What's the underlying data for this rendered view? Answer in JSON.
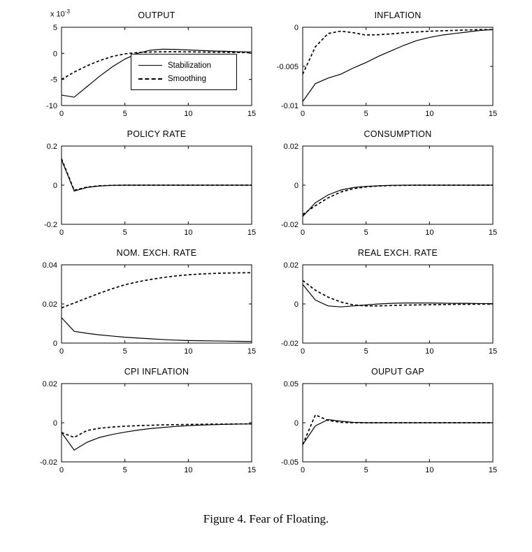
{
  "caption": "Figure 4. Fear of Floating.",
  "colors": {
    "line": "#000000",
    "background": "#ffffff"
  },
  "legend": {
    "entries": [
      {
        "label": "Stabilization",
        "style": "solid"
      },
      {
        "label": "Smoothing",
        "style": "dashed"
      }
    ]
  },
  "x": [
    0,
    1,
    2,
    3,
    4,
    5,
    6,
    7,
    8,
    9,
    10,
    11,
    12,
    13,
    14,
    15
  ],
  "chart_data": [
    {
      "type": "line",
      "title": "OUTPUT",
      "y_scale_prefix": "x 10",
      "y_scale_exp": "-3",
      "xlim": [
        0,
        15
      ],
      "ylim": [
        -10,
        5
      ],
      "xticks": [
        0,
        5,
        10,
        15
      ],
      "xtick_labels": [
        "0",
        "5",
        "10",
        "15"
      ],
      "yticks": [
        -10,
        -5,
        0,
        5
      ],
      "ytick_labels": [
        "-10",
        "-5",
        "0",
        "5"
      ],
      "legend_visible": true,
      "series": [
        {
          "name": "Stabilization",
          "style": "solid",
          "values": [
            -8.0,
            -8.4,
            -6.4,
            -4.4,
            -2.6,
            -1.1,
            0.0,
            0.6,
            0.8,
            0.75,
            0.65,
            0.55,
            0.45,
            0.4,
            0.3,
            0.25
          ]
        },
        {
          "name": "Smoothing",
          "style": "dashed",
          "values": [
            -5.0,
            -3.6,
            -2.4,
            -1.4,
            -0.6,
            -0.1,
            0.15,
            0.25,
            0.3,
            0.3,
            0.28,
            0.25,
            0.22,
            0.2,
            0.15,
            0.12
          ]
        }
      ]
    },
    {
      "type": "line",
      "title": "INFLATION",
      "xlim": [
        0,
        15
      ],
      "ylim": [
        -0.01,
        0
      ],
      "xticks": [
        0,
        5,
        10,
        15
      ],
      "xtick_labels": [
        "0",
        "5",
        "10",
        "15"
      ],
      "yticks": [
        -0.01,
        -0.005,
        0
      ],
      "ytick_labels": [
        "-0.01",
        "-0.005",
        "0"
      ],
      "series": [
        {
          "name": "Stabilization",
          "style": "solid",
          "values": [
            -0.0095,
            -0.0072,
            -0.0065,
            -0.006,
            -0.0052,
            -0.0045,
            -0.0037,
            -0.003,
            -0.0023,
            -0.0017,
            -0.0013,
            -0.001,
            -0.0008,
            -0.0006,
            -0.0004,
            -0.0003
          ]
        },
        {
          "name": "Smoothing",
          "style": "dashed",
          "values": [
            -0.006,
            -0.0025,
            -0.0008,
            -0.0005,
            -0.0007,
            -0.001,
            -0.00095,
            -0.00085,
            -0.0007,
            -0.0006,
            -0.0005,
            -0.00045,
            -0.0004,
            -0.00035,
            -0.0003,
            -0.0003
          ]
        }
      ]
    },
    {
      "type": "line",
      "title": "POLICY RATE",
      "xlim": [
        0,
        15
      ],
      "ylim": [
        -0.2,
        0.2
      ],
      "xticks": [
        0,
        5,
        10,
        15
      ],
      "xtick_labels": [
        "0",
        "5",
        "10",
        "15"
      ],
      "yticks": [
        -0.2,
        0,
        0.2
      ],
      "ytick_labels": [
        "-0.2",
        "0",
        "0.2"
      ],
      "series": [
        {
          "name": "Stabilization",
          "style": "solid",
          "values": [
            0.13,
            -0.03,
            -0.012,
            -0.004,
            -0.001,
            0,
            0,
            0,
            0,
            0,
            0,
            0,
            0,
            0,
            0,
            0
          ]
        },
        {
          "name": "Smoothing",
          "style": "dashed",
          "values": [
            0.135,
            -0.026,
            -0.01,
            -0.003,
            -0.001,
            0,
            0,
            0,
            0,
            0,
            0,
            0,
            0,
            0,
            0,
            0
          ]
        }
      ]
    },
    {
      "type": "line",
      "title": "CONSUMPTION",
      "xlim": [
        0,
        15
      ],
      "ylim": [
        -0.02,
        0.02
      ],
      "xticks": [
        0,
        5,
        10,
        15
      ],
      "xtick_labels": [
        "0",
        "5",
        "10",
        "15"
      ],
      "yticks": [
        -0.02,
        0,
        0.02
      ],
      "ytick_labels": [
        "-0.02",
        "0",
        "0.02"
      ],
      "series": [
        {
          "name": "Stabilization",
          "style": "solid",
          "values": [
            -0.016,
            -0.009,
            -0.005,
            -0.0025,
            -0.0012,
            -0.0006,
            -0.0003,
            -0.0001,
            0,
            0,
            0,
            0,
            0,
            0,
            0,
            0
          ]
        },
        {
          "name": "Smoothing",
          "style": "dashed",
          "values": [
            -0.015,
            -0.0105,
            -0.0065,
            -0.0035,
            -0.0018,
            -0.0009,
            -0.0004,
            -0.0002,
            -0.0001,
            0,
            0,
            0,
            0,
            0,
            0,
            0
          ]
        }
      ]
    },
    {
      "type": "line",
      "title": "NOM. EXCH. RATE",
      "xlim": [
        0,
        15
      ],
      "ylim": [
        0,
        0.04
      ],
      "xticks": [
        0,
        5,
        10,
        15
      ],
      "xtick_labels": [
        "0",
        "5",
        "10",
        "15"
      ],
      "yticks": [
        0,
        0.02,
        0.04
      ],
      "ytick_labels": [
        "0",
        "0.02",
        "0.04"
      ],
      "series": [
        {
          "name": "Stabilization",
          "style": "solid",
          "values": [
            0.013,
            0.006,
            0.005,
            0.0042,
            0.0036,
            0.003,
            0.0026,
            0.0022,
            0.0018,
            0.0015,
            0.0013,
            0.0012,
            0.0011,
            0.001,
            0.0009,
            0.0008
          ]
        },
        {
          "name": "Smoothing",
          "style": "dashed",
          "values": [
            0.018,
            0.0205,
            0.023,
            0.0255,
            0.0278,
            0.0298,
            0.0313,
            0.0325,
            0.0335,
            0.0343,
            0.0349,
            0.0353,
            0.0356,
            0.0358,
            0.0359,
            0.036
          ]
        }
      ]
    },
    {
      "type": "line",
      "title": "REAL EXCH. RATE",
      "xlim": [
        0,
        15
      ],
      "ylim": [
        -0.02,
        0.02
      ],
      "xticks": [
        0,
        5,
        10,
        15
      ],
      "xtick_labels": [
        "0",
        "5",
        "10",
        "15"
      ],
      "yticks": [
        -0.02,
        0,
        0.02
      ],
      "ytick_labels": [
        "-0.02",
        "0",
        "0.02"
      ],
      "series": [
        {
          "name": "Stabilization",
          "style": "solid",
          "values": [
            0.01,
            0.002,
            -0.001,
            -0.0015,
            -0.001,
            -0.0005,
            0.0,
            0.0003,
            0.0005,
            0.0005,
            0.0005,
            0.0004,
            0.0003,
            0.0003,
            0.0002,
            0.0002
          ]
        },
        {
          "name": "Smoothing",
          "style": "dashed",
          "values": [
            0.012,
            0.007,
            0.0035,
            0.001,
            -0.0005,
            -0.001,
            -0.001,
            -0.0008,
            -0.0006,
            -0.0005,
            -0.0004,
            -0.0003,
            -0.0002,
            -0.0002,
            -0.0001,
            -0.0001
          ]
        }
      ]
    },
    {
      "type": "line",
      "title": "CPI INFLATION",
      "xlim": [
        0,
        15
      ],
      "ylim": [
        -0.02,
        0.02
      ],
      "xticks": [
        0,
        5,
        10,
        15
      ],
      "xtick_labels": [
        "0",
        "5",
        "10",
        "15"
      ],
      "yticks": [
        -0.02,
        0,
        0.02
      ],
      "ytick_labels": [
        "-0.02",
        "0",
        "0.02"
      ],
      "series": [
        {
          "name": "Stabilization",
          "style": "solid",
          "values": [
            -0.005,
            -0.014,
            -0.01,
            -0.0075,
            -0.006,
            -0.0048,
            -0.0038,
            -0.003,
            -0.0024,
            -0.0019,
            -0.0015,
            -0.0012,
            -0.001,
            -0.0008,
            -0.0007,
            -0.0006
          ]
        },
        {
          "name": "Smoothing",
          "style": "dashed",
          "values": [
            -0.005,
            -0.0075,
            -0.004,
            -0.0028,
            -0.0022,
            -0.0018,
            -0.0015,
            -0.0013,
            -0.0011,
            -0.001,
            -0.0009,
            -0.0008,
            -0.0007,
            -0.0007,
            -0.0006,
            -0.0006
          ]
        }
      ]
    },
    {
      "type": "line",
      "title": "OUPUT GAP",
      "xlim": [
        0,
        15
      ],
      "ylim": [
        -0.05,
        0.05
      ],
      "xticks": [
        0,
        5,
        10,
        15
      ],
      "xtick_labels": [
        "0",
        "5",
        "10",
        "15"
      ],
      "yticks": [
        -0.05,
        0,
        0.05
      ],
      "ytick_labels": [
        "-0.05",
        "0",
        "0.05"
      ],
      "series": [
        {
          "name": "Stabilization",
          "style": "solid",
          "values": [
            -0.028,
            -0.004,
            0.004,
            0.002,
            0.0005,
            0,
            0,
            0,
            0,
            0,
            0,
            0,
            0,
            0,
            0,
            0
          ]
        },
        {
          "name": "Smoothing",
          "style": "dashed",
          "values": [
            -0.028,
            0.01,
            0.003,
            0.0005,
            0,
            0,
            0,
            0,
            0,
            0,
            0,
            0,
            0,
            0,
            0,
            0
          ]
        }
      ]
    }
  ]
}
